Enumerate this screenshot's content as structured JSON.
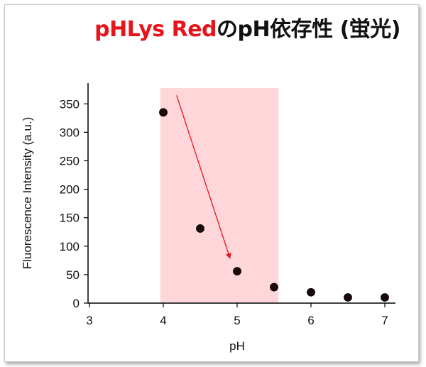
{
  "title": {
    "red_part": "pHLys Red",
    "black_part": "のpH依存性 (蛍光)"
  },
  "chart_data": {
    "type": "scatter",
    "title": "pHLys RedのpH依存性 (蛍光)",
    "xlabel": "pH",
    "ylabel": "Fluorescence Intensity (a.u.)",
    "xlim": [
      3,
      7
    ],
    "ylim": [
      0,
      350
    ],
    "xticks": [
      3,
      4,
      5,
      6,
      7
    ],
    "yticks": [
      0,
      50,
      100,
      150,
      200,
      250,
      300,
      350
    ],
    "grid": false,
    "legend": "none",
    "series": [
      {
        "x": [
          4.0,
          4.5,
          5.0,
          5.5,
          6.0,
          6.5,
          7.0
        ],
        "y": [
          335,
          131,
          56,
          28,
          19,
          10,
          10
        ],
        "color": "#000000"
      }
    ],
    "highlight_region": {
      "x_from": 3.96,
      "x_to": 5.56,
      "color": "#ffd6d9"
    },
    "arrow": {
      "from": [
        4.18,
        365
      ],
      "to": [
        4.9,
        80
      ],
      "color": "#e8141c"
    }
  }
}
